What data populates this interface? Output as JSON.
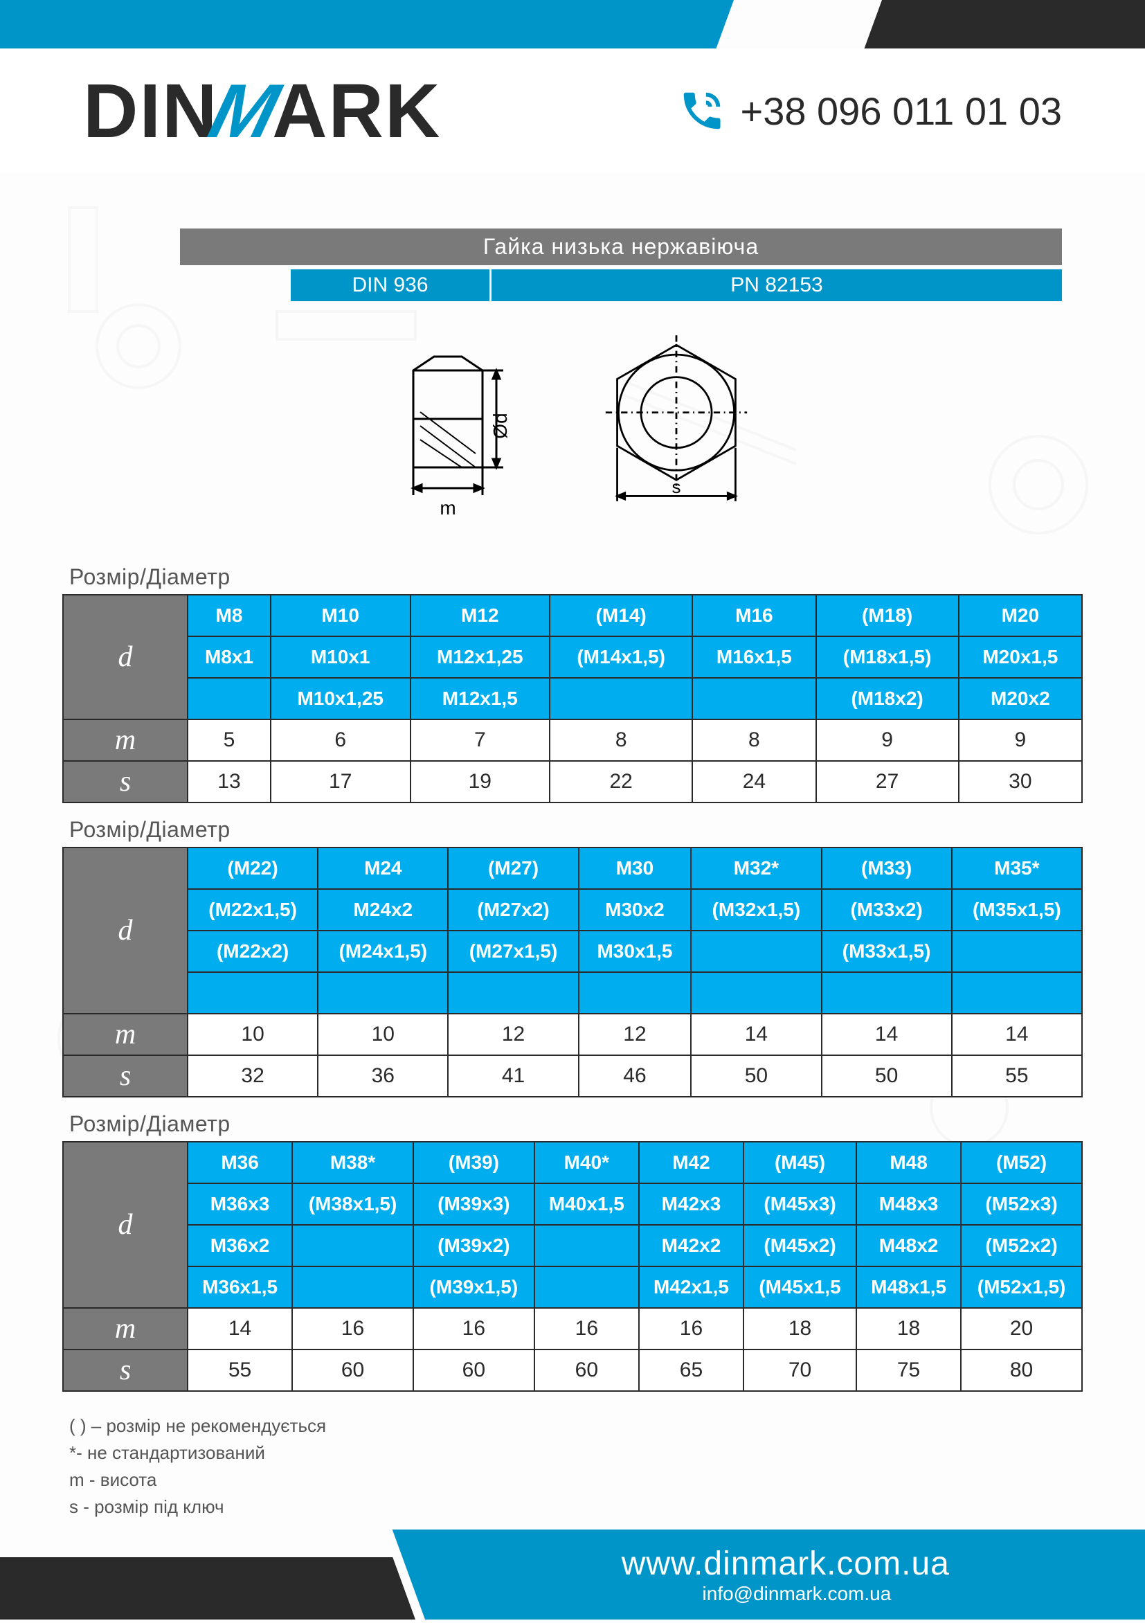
{
  "colors": {
    "teal": "#0095c8",
    "bright_teal": "#00aeef",
    "dark": "#2a2a2a",
    "gray": "#7a7a7a",
    "text_gray": "#555555",
    "white": "#ffffff"
  },
  "header": {
    "logo_parts": {
      "pre": "DIN",
      "mid": "M",
      "post": "ARK"
    },
    "phone": "+38 096 011 01 03"
  },
  "title": "Гайка низька нержавіюча",
  "standards": {
    "din": "DIN 936",
    "pn": "PN 82153"
  },
  "diagram_labels": {
    "d": "Ød",
    "m": "m",
    "s": "s"
  },
  "table_caption": "Розмір/Діаметр",
  "row_labels": {
    "d": "d",
    "m": "m",
    "s": "s"
  },
  "tables": [
    {
      "columns": 7,
      "d_rows": [
        [
          "M8",
          "M10",
          "M12",
          "(M14)",
          "M16",
          "(M18)",
          "M20"
        ],
        [
          "M8x1",
          "M10x1",
          "M12x1,25",
          "(M14x1,5)",
          "M16x1,5",
          "(M18x1,5)",
          "M20x1,5"
        ],
        [
          "",
          "M10x1,25",
          "M12x1,5",
          "",
          "",
          "(M18x2)",
          "M20x2"
        ]
      ],
      "m": [
        "5",
        "6",
        "7",
        "8",
        "8",
        "9",
        "9"
      ],
      "s": [
        "13",
        "17",
        "19",
        "22",
        "24",
        "27",
        "30"
      ]
    },
    {
      "columns": 7,
      "d_rows": [
        [
          "(M22)",
          "M24",
          "(M27)",
          "M30",
          "M32*",
          "(M33)",
          "M35*"
        ],
        [
          "(M22x1,5)",
          "M24x2",
          "(M27x2)",
          "M30x2",
          "(M32x1,5)",
          "(M33x2)",
          "(M35x1,5)"
        ],
        [
          "(M22x2)",
          "(M24x1,5)",
          "(M27x1,5)",
          "M30x1,5",
          "",
          "(M33x1,5)",
          ""
        ],
        [
          "",
          "",
          "",
          "",
          "",
          "",
          ""
        ]
      ],
      "m": [
        "10",
        "10",
        "12",
        "12",
        "14",
        "14",
        "14"
      ],
      "s": [
        "32",
        "36",
        "41",
        "46",
        "50",
        "50",
        "55"
      ]
    },
    {
      "columns": 8,
      "d_rows": [
        [
          "M36",
          "M38*",
          "(M39)",
          "M40*",
          "M42",
          "(M45)",
          "M48",
          "(M52)"
        ],
        [
          "M36x3",
          "(M38x1,5)",
          "(M39x3)",
          "M40x1,5",
          "M42x3",
          "(M45x3)",
          "M48x3",
          "(M52x3)"
        ],
        [
          "M36x2",
          "",
          "(M39x2)",
          "",
          "M42x2",
          "(M45x2)",
          "M48x2",
          "(M52x2)"
        ],
        [
          "M36x1,5",
          "",
          "(M39x1,5)",
          "",
          "M42x1,5",
          "(M45x1,5",
          "M48x1,5",
          "(M52x1,5)"
        ]
      ],
      "m": [
        "14",
        "16",
        "16",
        "16",
        "16",
        "18",
        "18",
        "20"
      ],
      "s": [
        "55",
        "60",
        "60",
        "60",
        "65",
        "70",
        "75",
        "80"
      ]
    }
  ],
  "footnotes": [
    "( ) – розмір не рекомендується",
    "*- не стандартизований",
    "m - висота",
    "s - розмір під ключ"
  ],
  "footer": {
    "url": "www.dinmark.com.ua",
    "email": "info@dinmark.com.ua"
  }
}
